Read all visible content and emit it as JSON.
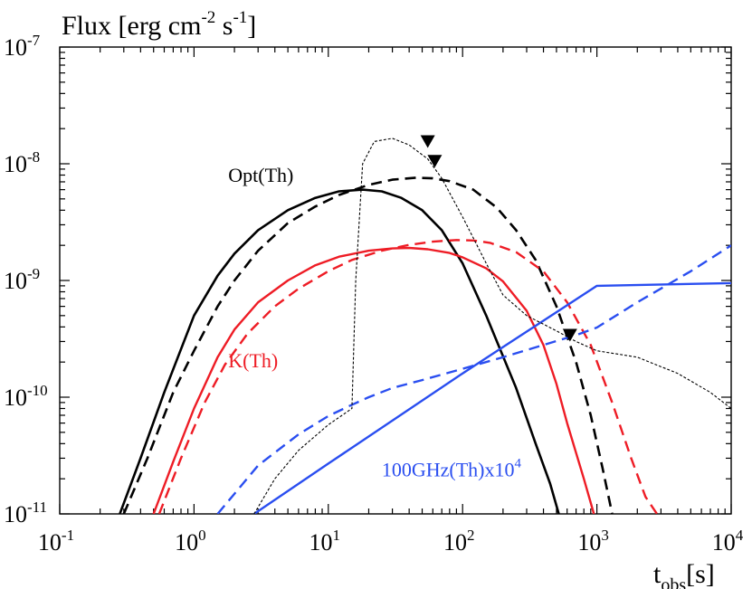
{
  "chart_data": {
    "type": "line",
    "title": "",
    "ylabel": {
      "main": "Flux [erg cm",
      "sup1": "-2",
      "mid": " s",
      "sup2": "-1",
      "end": "]"
    },
    "xlabel": {
      "main": "t",
      "sub": "obs",
      "end": "[s]"
    },
    "x_scale": "log",
    "y_scale": "log",
    "xlim": [
      0.1,
      10000
    ],
    "ylim": [
      1e-11,
      1e-07
    ],
    "x_ticks": [
      {
        "value": 0.1,
        "base": "10",
        "exp": "-1"
      },
      {
        "value": 1,
        "base": "10",
        "exp": "0"
      },
      {
        "value": 10,
        "base": "10",
        "exp": "1"
      },
      {
        "value": 100,
        "base": "10",
        "exp": "2"
      },
      {
        "value": 1000,
        "base": "10",
        "exp": "3"
      },
      {
        "value": 10000,
        "base": "10",
        "exp": "4"
      }
    ],
    "y_ticks": [
      {
        "value": 1e-11,
        "base": "10",
        "exp": "-11"
      },
      {
        "value": 1e-10,
        "base": "10",
        "exp": "-10"
      },
      {
        "value": 1e-09,
        "base": "10",
        "exp": "-9"
      },
      {
        "value": 1e-08,
        "base": "10",
        "exp": "-8"
      },
      {
        "value": 1e-07,
        "base": "10",
        "exp": "-7"
      }
    ],
    "colors": {
      "black": "#000000",
      "red": "#ee1c25",
      "blue": "#2a4ef0"
    },
    "series": [
      {
        "name": "Opt(Th) solid",
        "color": "#000000",
        "style": "solid",
        "width": 2.6,
        "x": [
          0.28,
          0.4,
          0.6,
          1,
          1.5,
          2,
          3,
          5,
          8,
          12,
          18,
          25,
          35,
          50,
          70,
          100,
          150,
          250,
          350,
          450,
          520
        ],
        "y": [
          1e-11,
          3e-11,
          1.1e-10,
          5e-10,
          1.1e-09,
          1.7e-09,
          2.7e-09,
          4e-09,
          5.1e-09,
          5.8e-09,
          6e-09,
          5.8e-09,
          5.1e-09,
          4e-09,
          2.7e-09,
          1.4e-09,
          5e-10,
          1.2e-10,
          4e-11,
          1.8e-11,
          1e-11
        ]
      },
      {
        "name": "Opt(Th) dashed",
        "color": "#000000",
        "style": "dashed",
        "width": 2.6,
        "x": [
          0.3,
          0.45,
          0.7,
          1,
          1.5,
          2,
          3,
          5,
          8,
          12,
          20,
          30,
          45,
          60,
          80,
          120,
          180,
          250,
          350,
          500,
          700,
          900,
          1100,
          1300
        ],
        "y": [
          1e-11,
          3e-11,
          1.1e-10,
          2.5e-10,
          6e-10,
          1e-09,
          1.8e-09,
          3.1e-09,
          4.3e-09,
          5.4e-09,
          6.6e-09,
          7.3e-09,
          7.6e-09,
          7.5e-09,
          7.1e-09,
          6e-09,
          4.2e-09,
          2.7e-09,
          1.5e-09,
          6e-10,
          2e-10,
          7e-11,
          2.5e-11,
          1e-11
        ]
      },
      {
        "name": "K(Th) solid",
        "color": "#ee1c25",
        "style": "solid",
        "width": 2.4,
        "x": [
          0.5,
          0.7,
          1,
          1.5,
          2,
          3,
          5,
          8,
          12,
          20,
          30,
          40,
          55,
          80,
          100,
          150,
          200,
          300,
          400,
          500,
          600,
          800,
          950
        ],
        "y": [
          1e-11,
          2.8e-11,
          8e-11,
          2.2e-10,
          3.8e-10,
          6.5e-10,
          1e-09,
          1.35e-09,
          1.6e-09,
          1.8e-09,
          1.88e-09,
          1.9e-09,
          1.85e-09,
          1.72e-09,
          1.58e-09,
          1.27e-09,
          9.8e-10,
          5.5e-10,
          2.8e-10,
          1.3e-10,
          6e-11,
          2e-11,
          1e-11
        ]
      },
      {
        "name": "K(Th) dashed",
        "color": "#ee1c25",
        "style": "dashed",
        "width": 2.4,
        "x": [
          0.55,
          0.8,
          1.2,
          1.7,
          2.5,
          4,
          6,
          10,
          15,
          25,
          40,
          60,
          90,
          120,
          160,
          250,
          400,
          600,
          900,
          1300,
          1800,
          2300,
          2800
        ],
        "y": [
          1e-11,
          3e-11,
          9e-11,
          1.9e-10,
          3.5e-10,
          6e-10,
          8.5e-10,
          1.2e-09,
          1.5e-09,
          1.8e-09,
          2.02e-09,
          2.15e-09,
          2.22e-09,
          2.2e-09,
          2.1e-09,
          1.75e-09,
          1.2e-09,
          6.5e-10,
          2.8e-10,
          9e-11,
          3e-11,
          1.4e-11,
          1e-11
        ]
      },
      {
        "name": "100GHz(Th)x10^4 solid",
        "color": "#2a4ef0",
        "style": "solid",
        "width": 2.4,
        "x": [
          2.8,
          10,
          100,
          1000,
          10000
        ],
        "y": [
          1e-11,
          2.7e-11,
          1.6e-10,
          9e-10,
          9.5e-10
        ]
      },
      {
        "name": "100GHz(Th)x10^4 dashed",
        "color": "#2a4ef0",
        "style": "dashed",
        "width": 2.4,
        "x": [
          1.5,
          3,
          6,
          10,
          15,
          20,
          30,
          50,
          100,
          200,
          400,
          700,
          1000,
          2000,
          5000,
          10000
        ],
        "y": [
          1e-11,
          2.6e-11,
          4.8e-11,
          6.9e-11,
          8.6e-11,
          1e-10,
          1.2e-10,
          1.4e-10,
          1.75e-10,
          2.2e-10,
          2.8e-10,
          3.4e-10,
          3.95e-10,
          6.5e-10,
          1.2e-09,
          2e-09
        ]
      },
      {
        "name": "observed thin dashed",
        "color": "#000000",
        "style": "dotted-thin",
        "width": 1.1,
        "x": [
          2.8,
          4,
          6,
          10,
          15,
          16,
          18,
          22,
          30,
          40,
          55,
          70,
          100,
          150,
          200,
          300,
          500,
          700,
          1000,
          2000,
          4000,
          7000,
          10000
        ],
        "y": [
          1e-11,
          2e-11,
          3.5e-11,
          5.8e-11,
          8e-11,
          1e-09,
          1e-08,
          1.55e-08,
          1.65e-08,
          1.45e-08,
          1.1e-08,
          7.5e-09,
          3.5e-09,
          1.4e-09,
          7.5e-10,
          5e-10,
          3.7e-10,
          3e-10,
          2.5e-10,
          2.2e-10,
          1.6e-10,
          1.1e-10,
          8e-11
        ]
      }
    ],
    "upper_limits": [
      {
        "x": 55,
        "y": 1.55e-08
      },
      {
        "x": 62,
        "y": 1.05e-08
      },
      {
        "x": 630,
        "y": 3.4e-10
      }
    ],
    "annotations": [
      {
        "text": "Opt(Th)",
        "color": "#000000",
        "x": 1.8,
        "y": 7e-09
      },
      {
        "text": "K(Th)",
        "color": "#ee1c25",
        "x": 1.8,
        "y": 1.8e-10
      },
      {
        "text": "100GHz(Th)x10",
        "sup": "4",
        "color": "#2a4ef0",
        "x": 25,
        "y": 2.1e-11
      }
    ]
  }
}
